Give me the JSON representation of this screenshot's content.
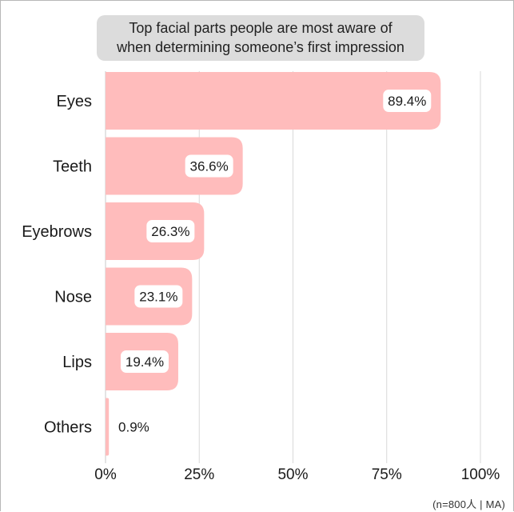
{
  "chart_data": {
    "type": "bar",
    "orientation": "horizontal",
    "title_lines": [
      "Top facial parts people are most aware of",
      "when determining someone’s first impression"
    ],
    "categories": [
      "Eyes",
      "Teeth",
      "Eyebrows",
      "Nose",
      "Lips",
      "Others"
    ],
    "values": [
      89.4,
      36.6,
      26.3,
      23.1,
      19.4,
      0.9
    ],
    "value_labels": [
      "89.4%",
      "36.6%",
      "26.3%",
      "23.1%",
      "19.4%",
      "0.9%"
    ],
    "xlim": [
      0,
      100
    ],
    "x_ticks": [
      0,
      25,
      50,
      75,
      100
    ],
    "x_tick_labels": [
      "0%",
      "25%",
      "50%",
      "75%",
      "100%"
    ],
    "grid": "vertical",
    "bar_color": "#ffbcbc",
    "label_box_color": "#ffffff",
    "gridline_color": "#d9d9d9"
  },
  "footnote": "(n=800人 | MA)"
}
